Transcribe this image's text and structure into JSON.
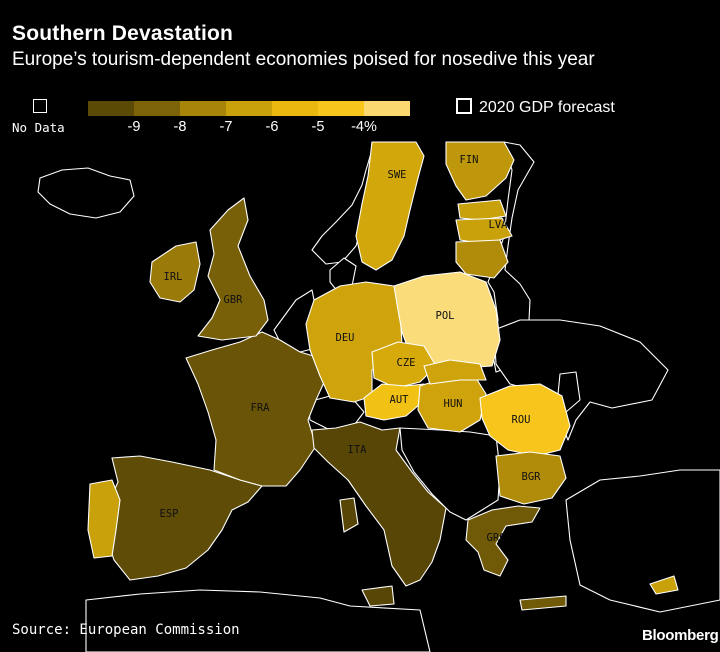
{
  "header": {
    "title": "Southern Devastation",
    "subtitle": "Europe’s tourism-dependent economies poised for nosedive this year"
  },
  "legend": {
    "no_data_label": "No Data",
    "forecast_label": "2020 GDP forecast",
    "scale_colors": [
      "#5a4a06",
      "#7c6307",
      "#a88409",
      "#c9a10b",
      "#eab80f",
      "#f7c51b",
      "#fbd870"
    ],
    "ticks": [
      "-9",
      "-8",
      "-7",
      "-6",
      "-5",
      "-4%"
    ]
  },
  "countries": {
    "ESP": {
      "label": "ESP",
      "color": "#5e4c07"
    },
    "FRA": {
      "label": "FRA",
      "color": "#6a5407"
    },
    "ITA": {
      "label": "ITA",
      "color": "#574606"
    },
    "GBR": {
      "label": "GBR",
      "color": "#786008"
    },
    "GRC": {
      "label": "GRC",
      "color": "#705907"
    },
    "IRL": {
      "label": "IRL",
      "color": "#9a7a09"
    },
    "PRT": {
      "label": "",
      "color": "#c9a10b"
    },
    "DEU": {
      "label": "DEU",
      "color": "#cfa30c"
    },
    "SWE": {
      "label": "SWE",
      "color": "#d2a70c"
    },
    "FIN": {
      "label": "FIN",
      "color": "#bf970b"
    },
    "LVA": {
      "label": "LVA",
      "color": "#c9a10b"
    },
    "POL": {
      "label": "POL",
      "color": "#fadc7a"
    },
    "CZE": {
      "label": "CZE",
      "color": "#d7aa0c"
    },
    "AUT": {
      "label": "AUT",
      "color": "#f1c113"
    },
    "HUN": {
      "label": "HUN",
      "color": "#cfa30c"
    },
    "ROU": {
      "label": "ROU",
      "color": "#f7c51b"
    },
    "BGR": {
      "label": "BGR",
      "color": "#b18c0a"
    }
  },
  "footer": {
    "source": "Source: European Commission",
    "brand": "Bloomberg"
  }
}
